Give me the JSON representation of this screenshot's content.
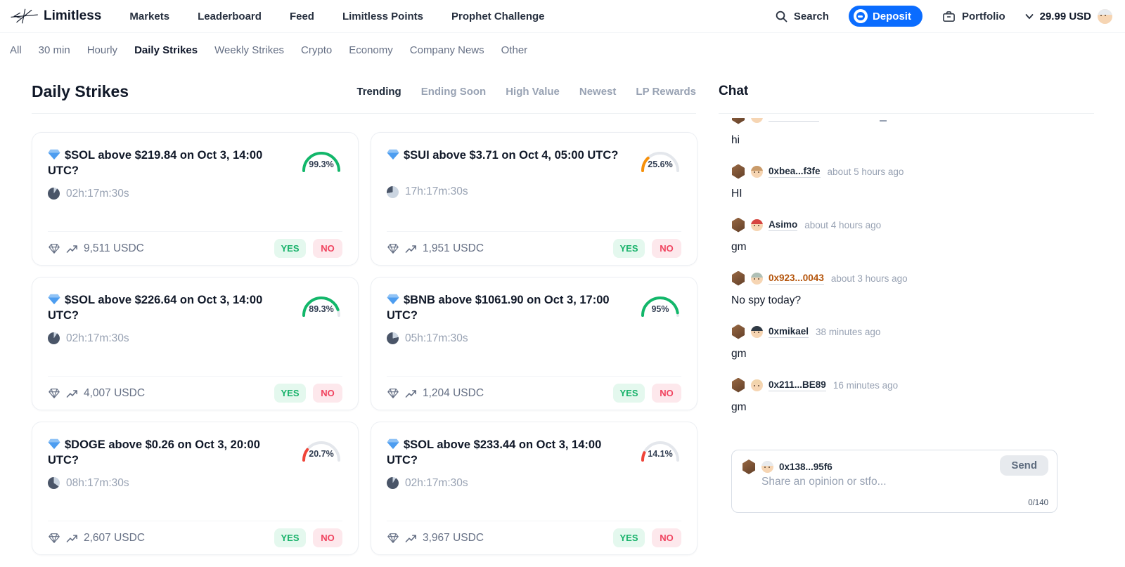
{
  "nav": {
    "brand": "Limitless",
    "items": [
      "Markets",
      "Leaderboard",
      "Feed",
      "Limitless Points",
      "Prophet Challenge"
    ],
    "search_label": "Search",
    "deposit_label": "Deposit",
    "portfolio_label": "Portfolio",
    "balance": "29.99 USD"
  },
  "filters": {
    "items": [
      "All",
      "30 min",
      "Hourly",
      "Daily Strikes",
      "Weekly Strikes",
      "Crypto",
      "Economy",
      "Company News",
      "Other"
    ],
    "active": "Daily Strikes"
  },
  "markets": {
    "title": "Daily Strikes",
    "tabs": [
      "Trending",
      "Ending Soon",
      "High Value",
      "Newest",
      "LP Rewards"
    ],
    "active_tab": "Trending",
    "yes_label": "YES",
    "no_label": "NO",
    "cards": [
      {
        "title": "$SOL above $219.84 on Oct 3, 14:00 UTC?",
        "timer": "02h:17m:30s",
        "time_left_pct_of_day": 9.5,
        "chance_label": "99.3%",
        "chance_pct": 99.3,
        "chance_color": "#12B76A",
        "volume": "9,511 USDC"
      },
      {
        "title": "$SUI above $3.71 on Oct 4, 05:00 UTC?",
        "timer": "17h:17m:30s",
        "time_left_pct_of_day": 72.1,
        "chance_label": "25.6%",
        "chance_pct": 25.6,
        "chance_color": "#F79009",
        "volume": "1,951 USDC"
      },
      {
        "title": "$SOL above $226.64 on Oct 3, 14:00 UTC?",
        "timer": "02h:17m:30s",
        "time_left_pct_of_day": 9.5,
        "chance_label": "89.3%",
        "chance_pct": 89.3,
        "chance_color": "#12B76A",
        "volume": "4,007 USDC"
      },
      {
        "title": "$BNB above $1061.90 on Oct 3, 17:00 UTC?",
        "timer": "05h:17m:30s",
        "time_left_pct_of_day": 22.0,
        "chance_label": "95%",
        "chance_pct": 95.0,
        "chance_color": "#12B76A",
        "volume": "1,204 USDC"
      },
      {
        "title": "$DOGE above $0.26 on Oct 3, 20:00 UTC?",
        "timer": "08h:17m:30s",
        "time_left_pct_of_day": 34.6,
        "chance_label": "20.7%",
        "chance_pct": 20.7,
        "chance_color": "#F04438",
        "volume": "2,607 USDC"
      },
      {
        "title": "$SOL above $233.44 on Oct 3, 14:00 UTC?",
        "timer": "02h:17m:30s",
        "time_left_pct_of_day": 9.5,
        "chance_label": "14.1%",
        "chance_pct": 14.1,
        "chance_color": "#F04438",
        "volume": "3,967 USDC"
      }
    ]
  },
  "chat": {
    "title": "Chat",
    "clipped_message_text": "hi",
    "messages": [
      {
        "name": "0xbea...f3fe",
        "time": "about 5 hours ago",
        "text": "HI",
        "name_color": "#1D2939",
        "avatar_hair": "#C99B6A"
      },
      {
        "name": "Asimo",
        "time": "about 4 hours ago",
        "text": "gm",
        "name_color": "#1D2939",
        "avatar_hair": "#D64541"
      },
      {
        "name": "0x923...0043",
        "time": "about 3 hours ago",
        "text": "No spy today?",
        "name_color": "#B45309",
        "avatar_hair": "#AEBFB6"
      },
      {
        "name": "0xmikael",
        "time": "38 minutes ago",
        "text": "gm",
        "name_color": "#1D2939",
        "avatar_hair": "#2F3A45"
      },
      {
        "name": "0x211...BE89",
        "time": "16 minutes ago",
        "text": "gm",
        "name_color": "#1D2939",
        "avatar_hair": "#F2D4AC"
      }
    ],
    "input": {
      "user": "0x138...95f6",
      "user_avatar_hair": "#E8EBEE",
      "placeholder": "Share an opinion or stfo...",
      "send_label": "Send",
      "counter": "0/140"
    }
  },
  "colors": {
    "accent_blue": "#0A6CFF",
    "gauge_green": "#12B76A",
    "gauge_orange": "#F79009",
    "gauge_red": "#F04438",
    "gauge_track": "#E4E7EC",
    "pie_elapsed": "#4A5568",
    "pie_remaining": "#CBD5E1"
  }
}
